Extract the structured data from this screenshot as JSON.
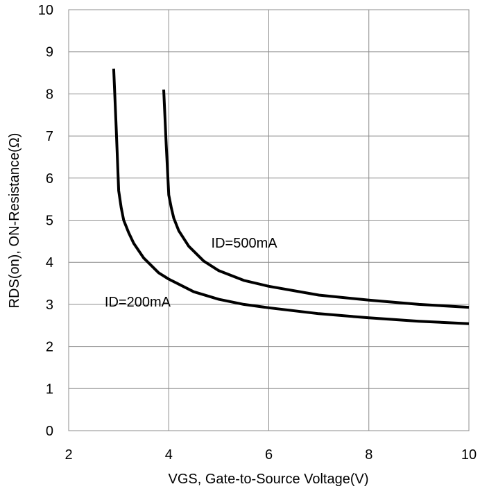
{
  "chart_data": {
    "type": "line",
    "title": "",
    "xlabel": "VGS, Gate-to-Source Voltage(V)",
    "ylabel": "RDS(on), ON-Resistance(Ω)",
    "xlim": [
      2,
      10
    ],
    "ylim": [
      0,
      10
    ],
    "x_ticks": [
      2,
      4,
      6,
      8,
      10
    ],
    "y_ticks": [
      0,
      1,
      2,
      3,
      4,
      5,
      6,
      7,
      8,
      9,
      10
    ],
    "grid": true,
    "legend": "none",
    "line_color": "#000000",
    "series": [
      {
        "name": "ID=200mA",
        "x": [
          2.9,
          2.95,
          3.0,
          3.05,
          3.1,
          3.2,
          3.3,
          3.5,
          3.8,
          4.0,
          4.5,
          5.0,
          5.5,
          6.0,
          7.0,
          8.0,
          9.0,
          10.0
        ],
        "y": [
          8.6,
          7.2,
          5.7,
          5.3,
          5.0,
          4.7,
          4.45,
          4.1,
          3.75,
          3.6,
          3.3,
          3.12,
          3.0,
          2.92,
          2.78,
          2.68,
          2.6,
          2.54
        ]
      },
      {
        "name": "ID=500mA",
        "x": [
          3.9,
          3.95,
          4.0,
          4.05,
          4.1,
          4.2,
          4.4,
          4.7,
          5.0,
          5.5,
          6.0,
          7.0,
          8.0,
          9.0,
          10.0
        ],
        "y": [
          8.1,
          6.8,
          5.6,
          5.3,
          5.05,
          4.75,
          4.38,
          4.03,
          3.8,
          3.57,
          3.43,
          3.22,
          3.1,
          3.0,
          2.93
        ]
      }
    ],
    "annotations": [
      {
        "text": "ID=500mA",
        "x": 4.85,
        "y": 4.35
      },
      {
        "text": "ID=200mA",
        "x": 2.72,
        "y": 2.95
      }
    ]
  }
}
